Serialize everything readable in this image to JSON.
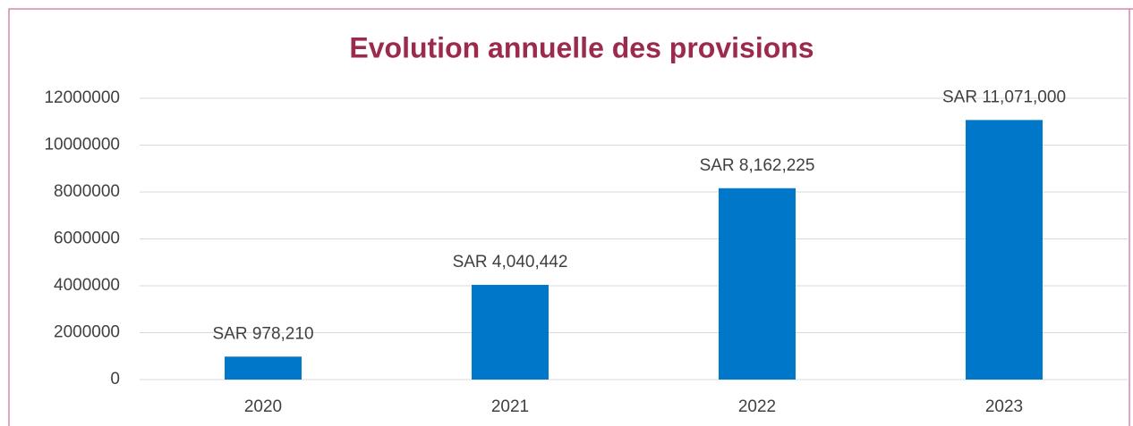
{
  "chart_data": {
    "type": "bar",
    "title": "Evolution annuelle des provisions",
    "categories": [
      "2020",
      "2021",
      "2022",
      "2023"
    ],
    "values": [
      978210,
      4040442,
      8162225,
      11071000
    ],
    "value_labels": [
      "SAR 978,210",
      "SAR 4,040,442",
      "SAR 8,162,225",
      "SAR 11,071,000"
    ],
    "color": "#0077c8",
    "ylim": [
      0,
      12000000
    ],
    "yticks": [
      0,
      2000000,
      4000000,
      6000000,
      8000000,
      10000000,
      12000000
    ],
    "grid": true
  }
}
